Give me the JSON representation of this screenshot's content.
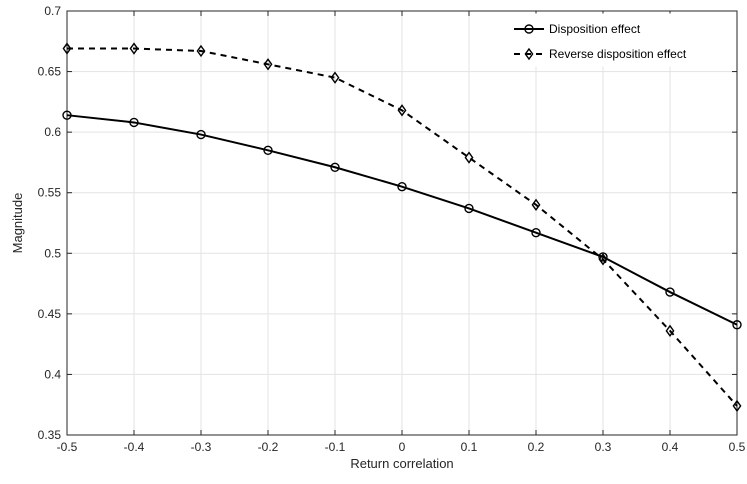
{
  "chart_data": {
    "type": "line",
    "xlabel": "Return correlation",
    "ylabel": "Magnitude",
    "xlim": [
      -0.5,
      0.5
    ],
    "ylim": [
      0.35,
      0.7
    ],
    "x_ticks": [
      -0.5,
      -0.4,
      -0.3,
      -0.2,
      -0.1,
      0,
      0.1,
      0.2,
      0.3,
      0.4,
      0.5
    ],
    "x_tick_labels": [
      "-0.5",
      "-0.4",
      "-0.3",
      "-0.2",
      "-0.1",
      "0",
      "0.1",
      "0.2",
      "0.3",
      "0.4",
      "0.5"
    ],
    "y_ticks": [
      0.35,
      0.4,
      0.45,
      0.5,
      0.55,
      0.6,
      0.65,
      0.7
    ],
    "y_tick_labels": [
      "0.35",
      "0.4",
      "0.45",
      "0.5",
      "0.55",
      "0.6",
      "0.65",
      "0.7"
    ],
    "grid": true,
    "legend_position": "top-right",
    "x": [
      -0.5,
      -0.4,
      -0.3,
      -0.2,
      -0.1,
      0,
      0.1,
      0.2,
      0.3,
      0.4,
      0.5
    ],
    "series": [
      {
        "name": "Disposition effect",
        "marker": "circle",
        "line_style": "solid",
        "color": "#000000",
        "values": [
          0.614,
          0.608,
          0.598,
          0.585,
          0.571,
          0.555,
          0.537,
          0.517,
          0.497,
          0.468,
          0.441
        ]
      },
      {
        "name": "Reverse disposition effect",
        "marker": "diamond",
        "line_style": "dashed",
        "color": "#000000",
        "values": [
          0.669,
          0.669,
          0.667,
          0.656,
          0.645,
          0.618,
          0.579,
          0.54,
          0.495,
          0.436,
          0.374
        ]
      }
    ]
  }
}
